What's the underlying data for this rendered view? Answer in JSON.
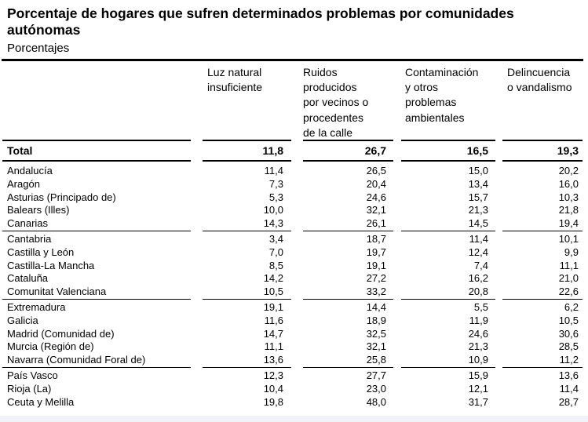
{
  "title": "Porcentaje de hogares que sufren determinados problemas por comunidades autónomas",
  "subtitle": "Porcentajes",
  "headers": [
    "Luz natural\ninsuficiente",
    "Ruidos\nproducidos\npor vecinos o\nprocedentes\nde la calle",
    "Contaminación\ny otros\nproblemas\nambientales",
    "Delincuencia\no vandalismo"
  ],
  "total": {
    "name": "Total",
    "values": [
      "11,8",
      "26,7",
      "16,5",
      "19,3"
    ]
  },
  "groups": [
    [
      {
        "name": "Andalucía",
        "values": [
          "11,4",
          "26,5",
          "15,0",
          "20,2"
        ]
      },
      {
        "name": "Aragón",
        "values": [
          "7,3",
          "20,4",
          "13,4",
          "16,0"
        ]
      },
      {
        "name": "Asturias (Principado de)",
        "values": [
          "5,3",
          "24,6",
          "15,7",
          "10,3"
        ]
      },
      {
        "name": "Balears (Illes)",
        "values": [
          "10,0",
          "32,1",
          "21,3",
          "21,8"
        ]
      },
      {
        "name": "Canarias",
        "values": [
          "14,3",
          "26,1",
          "14,5",
          "19,4"
        ]
      }
    ],
    [
      {
        "name": "Cantabria",
        "values": [
          "3,4",
          "18,7",
          "11,4",
          "10,1"
        ]
      },
      {
        "name": "Castilla y León",
        "values": [
          "7,0",
          "19,7",
          "12,4",
          "9,9"
        ]
      },
      {
        "name": "Castilla-La Mancha",
        "values": [
          "8,5",
          "19,1",
          "7,4",
          "11,1"
        ]
      },
      {
        "name": "Cataluña",
        "values": [
          "14,2",
          "27,2",
          "16,2",
          "21,0"
        ]
      },
      {
        "name": "Comunitat Valenciana",
        "values": [
          "10,5",
          "33,2",
          "20,8",
          "22,6"
        ]
      }
    ],
    [
      {
        "name": "Extremadura",
        "values": [
          "19,1",
          "14,4",
          "5,5",
          "6,2"
        ]
      },
      {
        "name": "Galicia",
        "values": [
          "11,6",
          "18,9",
          "11,9",
          "10,5"
        ]
      },
      {
        "name": "Madrid (Comunidad de)",
        "values": [
          "14,7",
          "32,5",
          "24,6",
          "30,6"
        ]
      },
      {
        "name": "Murcia (Región de)",
        "values": [
          "11,1",
          "32,1",
          "21,3",
          "28,5"
        ]
      },
      {
        "name": "Navarra (Comunidad Foral de)",
        "values": [
          "13,6",
          "25,8",
          "10,9",
          "11,2"
        ]
      }
    ],
    [
      {
        "name": "País Vasco",
        "values": [
          "12,3",
          "27,7",
          "15,9",
          "13,6"
        ]
      },
      {
        "name": "Rioja (La)",
        "values": [
          "10,4",
          "23,0",
          "12,1",
          "11,4"
        ]
      },
      {
        "name": "Ceuta y Melilla",
        "values": [
          "19,8",
          "48,0",
          "31,7",
          "28,7"
        ]
      }
    ]
  ]
}
